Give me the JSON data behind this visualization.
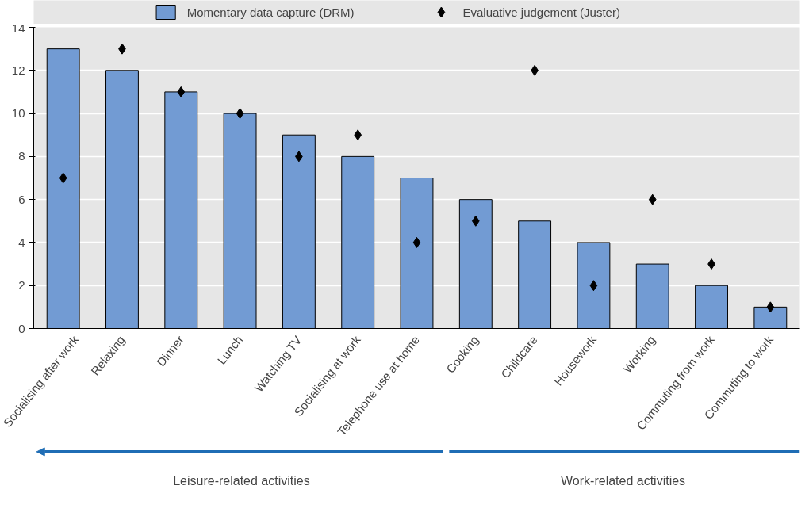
{
  "chart_data": {
    "type": "bar",
    "categories": [
      "Socialising after work",
      "Relaxing",
      "Dinner",
      "Lunch",
      "Watching TV",
      "Socialising at work",
      "Telephone use at home",
      "Cooking",
      "Childcare",
      "Housework",
      "Working",
      "Commuting from work",
      "Commuting to work"
    ],
    "series": [
      {
        "name": "Momentary data capture (DRM)",
        "color": "#729bd3",
        "values": [
          13,
          12,
          11,
          10,
          9,
          8,
          7,
          6,
          5,
          4,
          3,
          2,
          1
        ]
      },
      {
        "name": "Evaluative judgement (Juster)",
        "type": "scatter",
        "color": "#000000",
        "values": [
          7,
          13,
          11,
          10,
          8,
          9,
          4,
          5,
          12,
          2,
          6,
          3,
          1
        ]
      }
    ],
    "ylim": [
      0,
      14
    ],
    "yticks": [
      0,
      2,
      4,
      6,
      8,
      10,
      12,
      14
    ],
    "grid": "y",
    "legend": "top",
    "marker": "diamond",
    "annotations": [
      "Leisure-related activities",
      "Work-related activities"
    ]
  }
}
